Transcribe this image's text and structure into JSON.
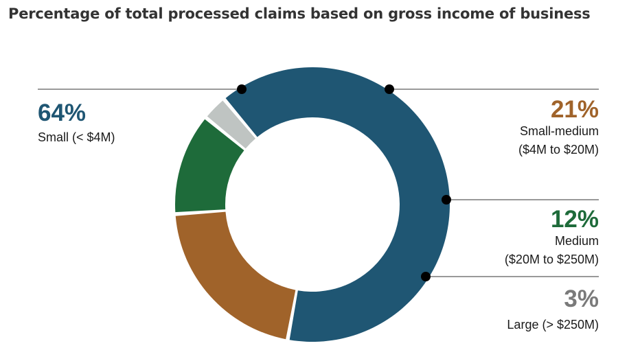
{
  "title": "Percentage of total processed claims based on gross income of business",
  "chart_data": {
    "type": "pie",
    "donut": true,
    "title": "Percentage of total processed claims based on gross income of business",
    "slices": [
      {
        "value": 64,
        "pct_label": "64%",
        "label_lines": [
          "Small (< $4M)"
        ],
        "color": "#1f5673",
        "label_color": "#1f5673",
        "side": "left"
      },
      {
        "value": 21,
        "pct_label": "21%",
        "label_lines": [
          "Small-medium",
          "($4M to $20M)"
        ],
        "color": "#a0632a",
        "label_color": "#a0632a",
        "side": "right"
      },
      {
        "value": 12,
        "pct_label": "12%",
        "label_lines": [
          "Medium",
          "($20M to $250M)"
        ],
        "color": "#1e6b3a",
        "label_color": "#1e6b3a",
        "side": "right"
      },
      {
        "value": 3,
        "pct_label": "3%",
        "label_lines": [
          "Large (> $250M)"
        ],
        "color": "#bfc4c2",
        "label_color": "#7a7a7a",
        "side": "right"
      }
    ]
  }
}
